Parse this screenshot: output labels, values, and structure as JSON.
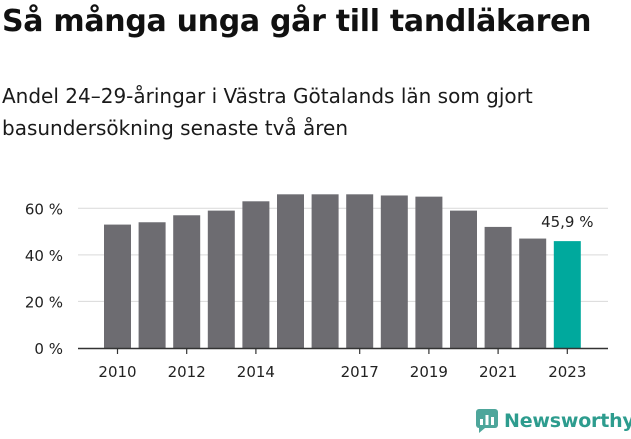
{
  "header": {
    "title": "Så många unga går till tandläkaren",
    "subtitle": "Andel 24–29-åringar i Västra Götalands län som gjort basundersökning senaste två åren"
  },
  "brand": {
    "name": "Newsworthy",
    "icon": "newsworthy-chart-logo-icon",
    "color": "#4ea69b"
  },
  "colors": {
    "bar": "#6d6c71",
    "highlight": "#00a99d",
    "axis": "#333333",
    "grid": "#d9d9d9"
  },
  "chart_data": {
    "type": "bar",
    "categories": [
      "2010",
      "2011",
      "2012",
      "2013",
      "2014",
      "2015",
      "2016",
      "2017",
      "2018",
      "2019",
      "2020",
      "2021",
      "2022",
      "2023"
    ],
    "values": [
      53,
      54,
      57,
      59,
      63,
      66,
      66,
      66,
      65.5,
      65,
      59,
      52,
      47,
      45.9
    ],
    "xtick_labels": [
      "2010",
      "",
      "2012",
      "",
      "2014",
      "",
      "",
      "2017",
      "",
      "2019",
      "",
      "2021",
      "",
      "2023"
    ],
    "yticks": [
      0,
      20,
      40,
      60
    ],
    "ytick_labels": [
      "0 %",
      "20 %",
      "40 %",
      "60 %"
    ],
    "ylim": [
      0,
      70
    ],
    "grid": true,
    "highlight_index": 13,
    "annotations": [
      {
        "category": "2023",
        "text": "45,9 %"
      }
    ]
  }
}
